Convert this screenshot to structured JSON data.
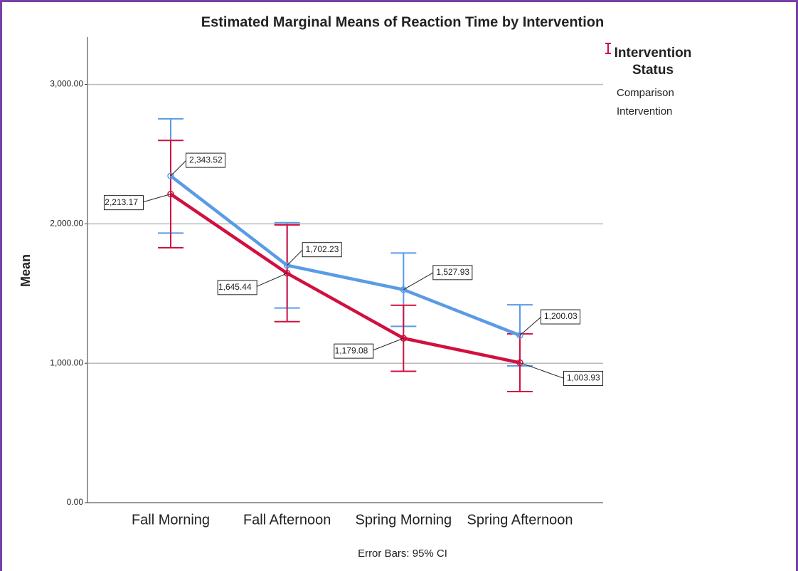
{
  "chart_data": {
    "type": "line",
    "title": "Estimated Marginal Means of Reaction Time by Intervention",
    "y_label": "Mean",
    "footnote": "Error Bars: 95% CI",
    "legend_title": "Intervention Status",
    "categories": [
      "Fall Morning",
      "Fall Afternoon",
      "Spring Morning",
      "Spring Afternoon"
    ],
    "series": [
      {
        "name": "Comparison",
        "color": "#5a9be6",
        "values": [
          2343.52,
          1702.23,
          1527.93,
          1200.03
        ],
        "value_labels": [
          "2,343.52",
          "1,702.23",
          "1,527.93",
          "1,200.03"
        ],
        "errors": [
          410,
          306,
          263,
          219
        ]
      },
      {
        "name": "Intervention",
        "color": "#d1103f",
        "values": [
          2213.17,
          1645.44,
          1179.08,
          1003.93
        ],
        "value_labels": [
          "2,213.17",
          "1,645.44",
          "1,179.08",
          "1,003.93"
        ],
        "errors": [
          385,
          347,
          237,
          207
        ]
      }
    ],
    "ylim": [
      0,
      3340
    ],
    "yticks": [
      {
        "value": 0,
        "label": "0.00"
      },
      {
        "value": 1000,
        "label": "1,000.00"
      },
      {
        "value": 2000,
        "label": "2,000.00"
      },
      {
        "value": 3000,
        "label": "3,000.00"
      }
    ],
    "grid": true
  }
}
